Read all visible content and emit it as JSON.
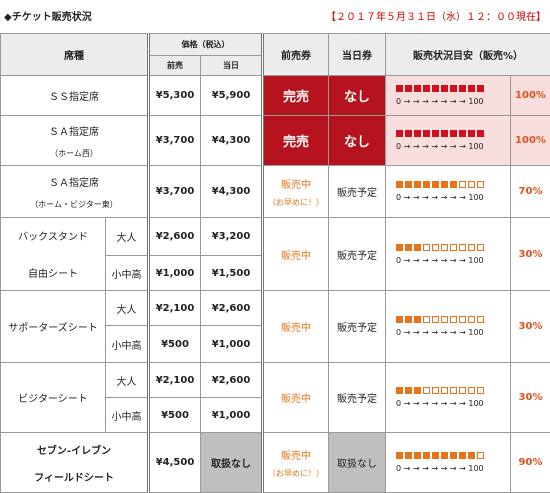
{
  "header": {
    "title": "◆チケット販売状況",
    "timestamp": "【２０１７年５月３１日（水）１２：００現在】"
  },
  "table": {
    "columns": {
      "seat": "席種",
      "price": "価格（税込）",
      "advance": "前売",
      "same_day": "当日",
      "advance_ticket": "前売券",
      "same_day_ticket": "当日券",
      "status": "販売状況目安（販売%）"
    },
    "scale": "0 → → → → → → → 100",
    "rows": [
      {
        "seat": "ＳＳ指定席",
        "advance_price": "¥5,300",
        "same_day_price": "¥5,900",
        "advance_ticket": "完売",
        "same_day_ticket": "なし",
        "sold": {
          "value": 100,
          "label": "100%"
        }
      },
      {
        "seat": "ＳＡ指定席",
        "seat_note": "（ホーム西）",
        "advance_price": "¥3,700",
        "same_day_price": "¥4,300",
        "advance_ticket": "完売",
        "same_day_ticket": "なし",
        "sold": {
          "value": 100,
          "label": "100%"
        }
      },
      {
        "seat": "ＳＡ指定席",
        "seat_note": "（ホーム・ビジター東）",
        "advance_price": "¥3,700",
        "same_day_price": "¥4,300",
        "advance_ticket": "販売中",
        "advance_note": "（お早めに！）",
        "same_day_ticket": "販売予定",
        "sold": {
          "value": 70,
          "label": "70%"
        }
      },
      {
        "seat": "バックスタンド",
        "seat_line2": "自由シート",
        "prices": [
          {
            "age": "大人",
            "advance": "¥2,600",
            "same_day": "¥3,200"
          },
          {
            "age": "小中高",
            "advance": "¥1,000",
            "same_day": "¥1,500"
          }
        ],
        "advance_ticket": "販売中",
        "same_day_ticket": "販売予定",
        "sold": {
          "value": 30,
          "label": "30%"
        }
      },
      {
        "seat": "サポーターズシート",
        "prices": [
          {
            "age": "大人",
            "advance": "¥2,100",
            "same_day": "¥2,600"
          },
          {
            "age": "小中高",
            "advance": "¥500",
            "same_day": "¥1,000"
          }
        ],
        "advance_ticket": "販売中",
        "same_day_ticket": "販売予定",
        "sold": {
          "value": 30,
          "label": "30%"
        }
      },
      {
        "seat": "ビジターシート",
        "prices": [
          {
            "age": "大人",
            "advance": "¥2,100",
            "same_day": "¥2,600"
          },
          {
            "age": "小中高",
            "advance": "¥500",
            "same_day": "¥1,000"
          }
        ],
        "advance_ticket": "販売中",
        "same_day_ticket": "販売予定",
        "sold": {
          "value": 30,
          "label": "30%"
        }
      },
      {
        "seat": "セブン-イレブン",
        "seat_line2": "フィールドシート",
        "advance_price": "¥4,500",
        "same_day_price": "取扱なし",
        "advance_ticket": "販売中",
        "advance_note": "（お早めに！）",
        "same_day_ticket": "取扱なし",
        "sold": {
          "value": 90,
          "label": "90%"
        }
      }
    ]
  }
}
